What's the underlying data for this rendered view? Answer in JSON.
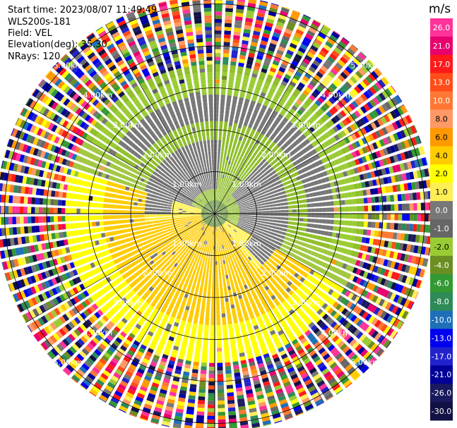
{
  "info": {
    "start_time": "Start time: 2023/08/07 11:49:49",
    "instrument": "WLS200s-181",
    "field": "Field: VEL",
    "elevation": "Elevation(deg): 35.30",
    "nrays": "NRays: 120"
  },
  "chart_data": {
    "type": "ppi-radar",
    "field": "VEL",
    "units": "m/s",
    "n_rays": 120,
    "range_rings_km": [
      1,
      2,
      3,
      4,
      5
    ],
    "ring_labels": [
      "1.00km",
      "2.00km",
      "3.00km",
      "4.00km",
      "5.00km"
    ],
    "max_range_km": 5.2,
    "colorbar": {
      "unit_label": "m/s",
      "ticks": [
        "26.0",
        "21.0",
        "17.0",
        "13.0",
        "10.0",
        "8.0",
        "6.0",
        "4.0",
        "2.0",
        "1.0",
        "0.0",
        "-1.0",
        "-2.0",
        "-4.0",
        "-6.0",
        "-8.0",
        "-10.0",
        "-13.0",
        "-17.0",
        "-21.0",
        "-26.0",
        "-30.0"
      ],
      "colors": [
        "#ff3399",
        "#e8006e",
        "#ff1a1a",
        "#ff4d1a",
        "#ff7733",
        "#ff9966",
        "#ff9900",
        "#ffcc00",
        "#ffff00",
        "#ffee55",
        "#777777",
        "#666666",
        "#99cc33",
        "#6b8e23",
        "#339933",
        "#2e8b57",
        "#1e6fb8",
        "#0000ee",
        "#2222cc",
        "#000099",
        "#1a1a5e",
        "#111144"
      ]
    },
    "pattern": "near-range rings of ~0 m/s (grey) surrounded by +2 to +4 m/s (yellow) on the south-east and -2 m/s (green) on the north-west, with noisy multicolour returns beyond ~3.5 km"
  }
}
